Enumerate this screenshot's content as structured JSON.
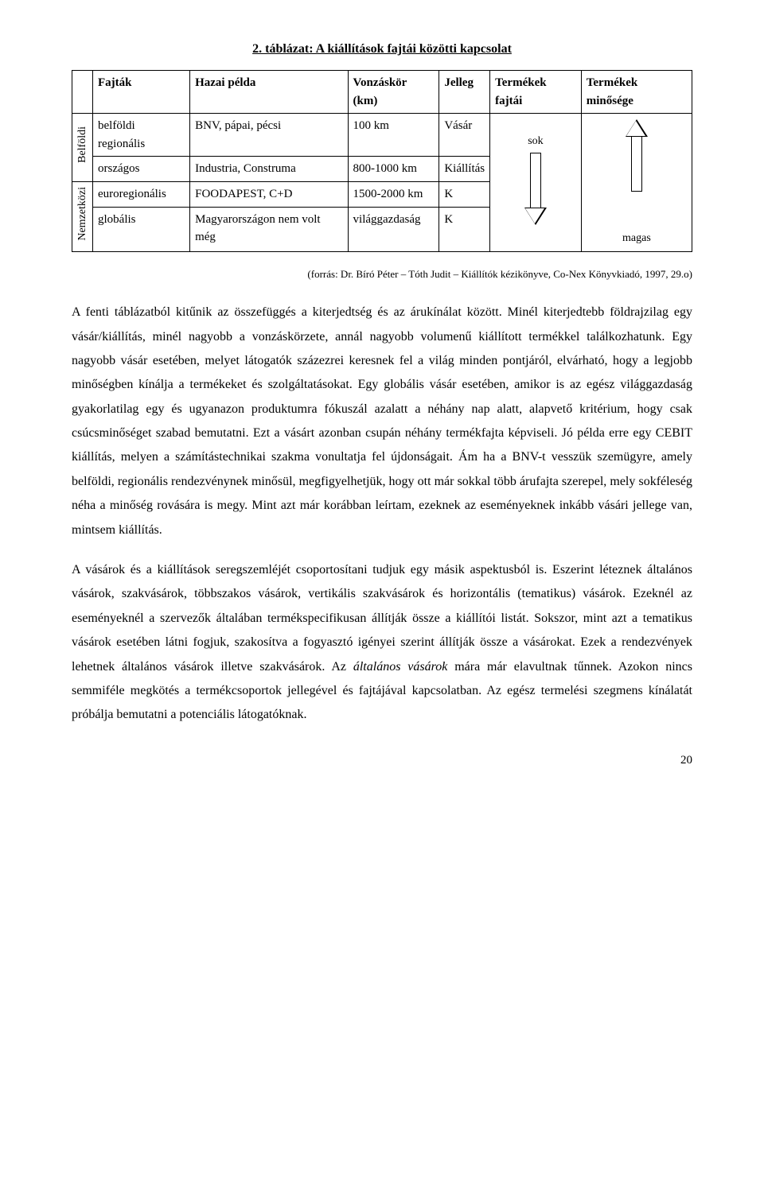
{
  "title": "2. táblázat: A kiállítások fajtái közötti kapcsolat",
  "table": {
    "headers": [
      "Fajták",
      "Hazai példa",
      "Vonzáskör (km)",
      "Jelleg",
      "Termékek fajtái",
      "Termékek minősége"
    ],
    "vlabel1": "Belföldi",
    "vlabel2": "Nemzetközi",
    "rows1": [
      {
        "fajtak": "belföldi regionális",
        "pelda": "BNV, pápai, pécsi",
        "vonz": "100 km",
        "jelleg": "Vásár"
      },
      {
        "fajtak": "országos",
        "pelda": "Industria, Construma",
        "vonz": "800-1000 km",
        "jelleg": "Kiállítás"
      }
    ],
    "rows2": [
      {
        "fajtak": "euroregionális",
        "pelda": "FOODAPEST, C+D",
        "vonz": "1500-2000 km",
        "jelleg": "K"
      },
      {
        "fajtak": "globális",
        "pelda": "Magyarországon nem volt még",
        "vonz": "világgazdaság",
        "jelleg": "K"
      }
    ],
    "arrow_top_label": "sok",
    "arrow_side_label": "magas"
  },
  "source": "(forrás: Dr. Bíró Péter – Tóth Judit – Kiállítók kézikönyve, Co-Nex Könyvkiadó, 1997, 29.o)",
  "para1_a": "A fenti táblázatból kitűnik az összefüggés a kiterjedtség és az árukínálat között. Minél kiterjedtebb földrajzilag egy vásár/kiállítás, minél nagyobb a vonzáskörzete, annál nagyobb volumenű kiállított termékkel találkozhatunk. Egy nagyobb vásár esetében, melyet látogatók százezrei keresnek fel a világ minden pontjáról, elvárható, hogy a legjobb minőségben kínálja a termékeket és szolgáltatásokat. Egy globális vásár esetében, amikor is az egész világgazdaság gyakorlatilag egy és ugyanazon produktumra fókuszál azalatt a néhány nap alatt, alapvető kritérium, hogy csak csúcsminőséget szabad bemutatni. Ezt a vásárt azonban csupán néhány termékfajta képviseli. Jó példa erre egy CEBIT kiállítás, melyen a számítástechnikai szakma vonultatja fel újdonságait. Ám ha a BNV-t vesszük szemügyre, amely belföldi, regionális rendezvénynek minősül, megfigyelhetjük, hogy ott már sokkal több árufajta szerepel, mely sokféleség néha a minőség rovására is megy. Mint azt már korábban leírtam, ezeknek az eseményeknek inkább vásári jellege van, mintsem kiállítás.",
  "para2_a": "A vásárok és a kiállítások seregszemléjét csoportosítani tudjuk egy másik aspektusból is. Eszerint léteznek általános vásárok, szakvásárok, többszakos vásárok, vertikális szakvásárok és horizontális (tematikus) vásárok. Ezeknél az eseményeknél a szervezők általában termékspecifikusan állítják össze a kiállítói listát. Sokszor, mint azt a tematikus vásárok esetében látni fogjuk, szakosítva a fogyasztó igényei szerint állítják össze a vásárokat. Ezek a rendezvények lehetnek általános vásárok illetve szakvásárok. Az ",
  "para2_italic": "általános vásárok",
  "para2_b": " mára már elavultnak tűnnek. Azokon nincs semmiféle megkötés a termékcsoportok jellegével és fajtájával kapcsolatban. Az egész termelési szegmens kínálatát próbálja bemutatni a potenciális látogatóknak.",
  "page_number": "20"
}
